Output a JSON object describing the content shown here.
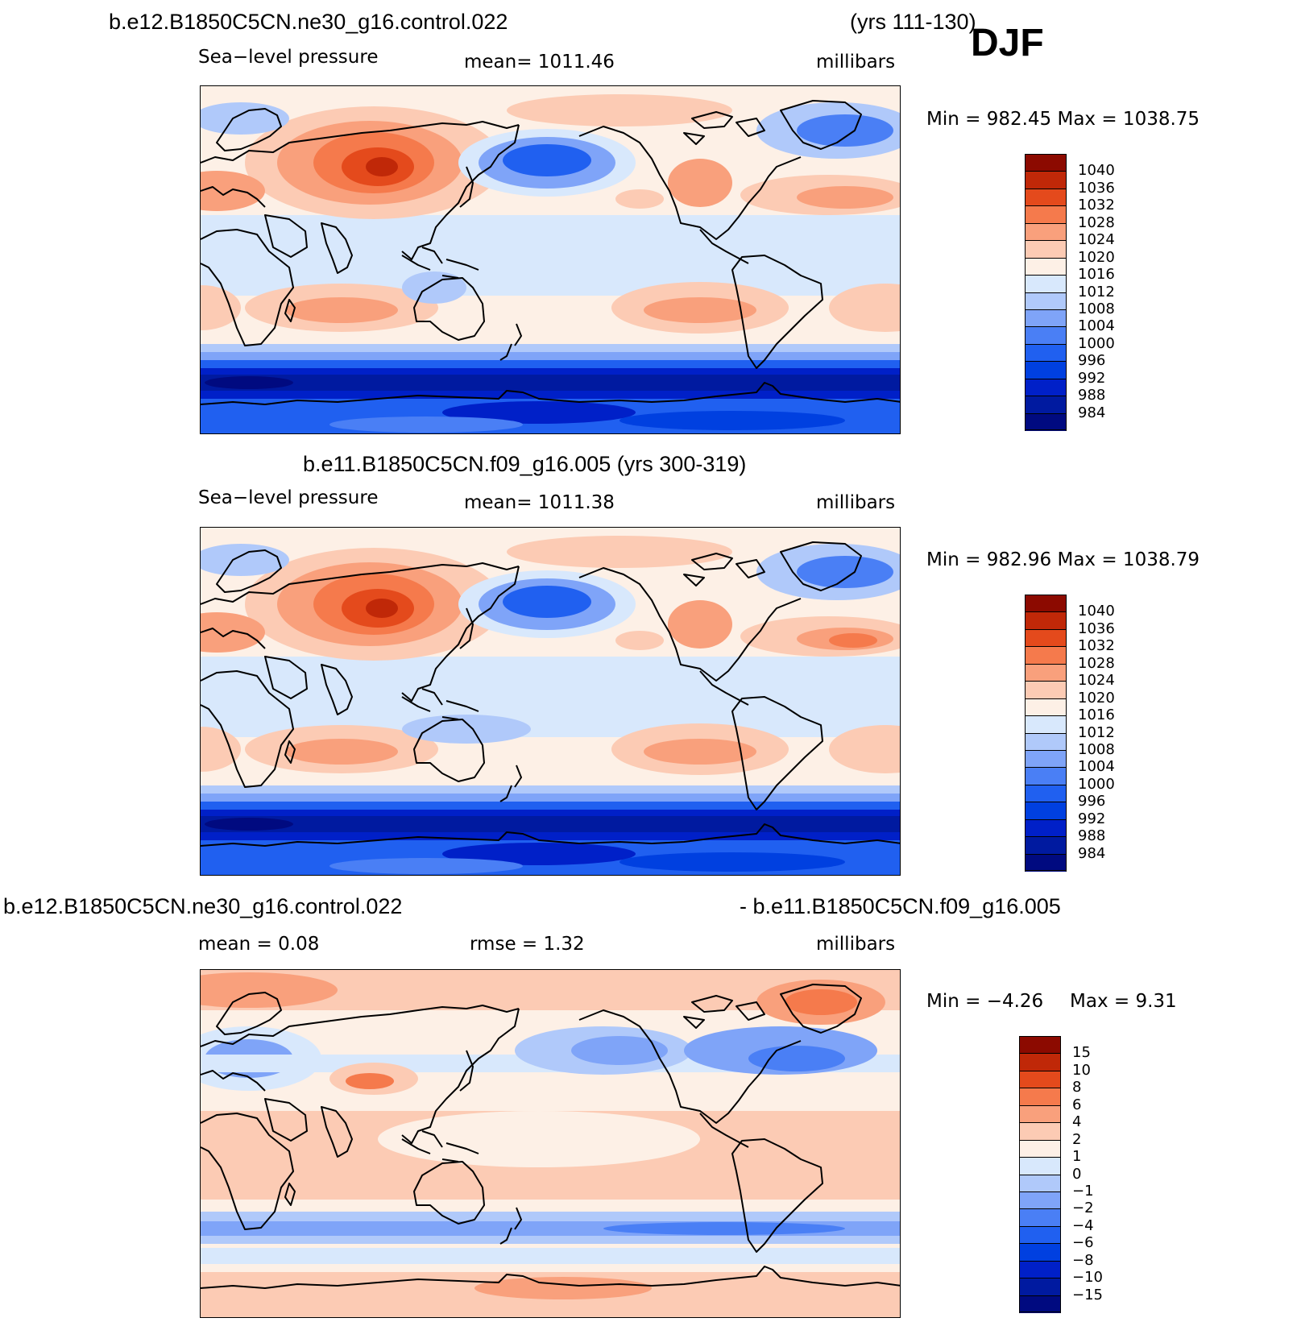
{
  "season": "DJF",
  "colors": {
    "abs_scale": [
      "#000a80",
      "#001aa0",
      "#0020c8",
      "#0040e0",
      "#2060f0",
      "#4a7ff5",
      "#7fa4f8",
      "#b0c9fa",
      "#d8e8fc",
      "#fdf0e6",
      "#fccbb4",
      "#f9a07c",
      "#f57a4c",
      "#e44a1c",
      "#c02808",
      "#8c0a00"
    ],
    "diff_scale": [
      "#000a80",
      "#001aa0",
      "#0020c8",
      "#0040e0",
      "#2060f0",
      "#4a7ff5",
      "#7fa4f8",
      "#b0c9fa",
      "#d8e8fc",
      "#fdf0e6",
      "#fccbb4",
      "#f9a07c",
      "#f57a4c",
      "#e44a1c",
      "#c02808",
      "#8c0a00"
    ],
    "coast": "#000000"
  },
  "panel1": {
    "case": "b.e12.B1850C5CN.ne30_g16.control.022",
    "years": "(yrs 111-130)",
    "variable": "Sea−level pressure",
    "mean": "mean=  1011.46",
    "units": "millibars",
    "minmax": "Min  =  982.45  Max  =  1038.75"
  },
  "panel2": {
    "title": "b.e11.B1850C5CN.f09_g16.005 (yrs 300-319)",
    "variable": "Sea−level pressure",
    "mean": "mean=  1011.38",
    "units": "millibars",
    "minmax": "Min  =  982.96  Max  =  1038.79"
  },
  "panel3": {
    "case_a": "b.e12.B1850C5CN.ne30_g16.control.022",
    "case_b": "- b.e11.B1850C5CN.f09_g16.005",
    "mean": "mean  =     0.08",
    "rmse": "rmse  =     1.32",
    "units": "millibars",
    "minmax_min": "Min  =    −4.26",
    "minmax_max": "Max  =      9.31"
  },
  "chart_data": [
    {
      "type": "heatmap",
      "title": "b.e12.B1850C5CN.ne30_g16.control.022 (yrs 111-130) Sea-level pressure",
      "units": "millibars",
      "mean": 1011.46,
      "min": 982.45,
      "max": 1038.75,
      "levels": [
        "1040",
        "1036",
        "1032",
        "1028",
        "1024",
        "1020",
        "1016",
        "1012",
        "1008",
        "1004",
        "1000",
        "996",
        "992",
        "988",
        "984"
      ]
    },
    {
      "type": "heatmap",
      "title": "b.e11.B1850C5CN.f09_g16.005 (yrs 300-319) Sea-level pressure",
      "units": "millibars",
      "mean": 1011.38,
      "min": 982.96,
      "max": 1038.79,
      "levels": [
        "1040",
        "1036",
        "1032",
        "1028",
        "1024",
        "1020",
        "1016",
        "1012",
        "1008",
        "1004",
        "1000",
        "996",
        "992",
        "988",
        "984"
      ]
    },
    {
      "type": "heatmap",
      "title": "b.e12.B1850C5CN.ne30_g16.control.022 - b.e11.B1850C5CN.f09_g16.005",
      "units": "millibars",
      "mean": 0.08,
      "rmse": 1.32,
      "min": -4.26,
      "max": 9.31,
      "levels": [
        "15",
        "10",
        "8",
        "6",
        "4",
        "2",
        "1",
        "0",
        "−1",
        "−2",
        "−4",
        "−6",
        "−8",
        "−10",
        "−15"
      ]
    }
  ]
}
